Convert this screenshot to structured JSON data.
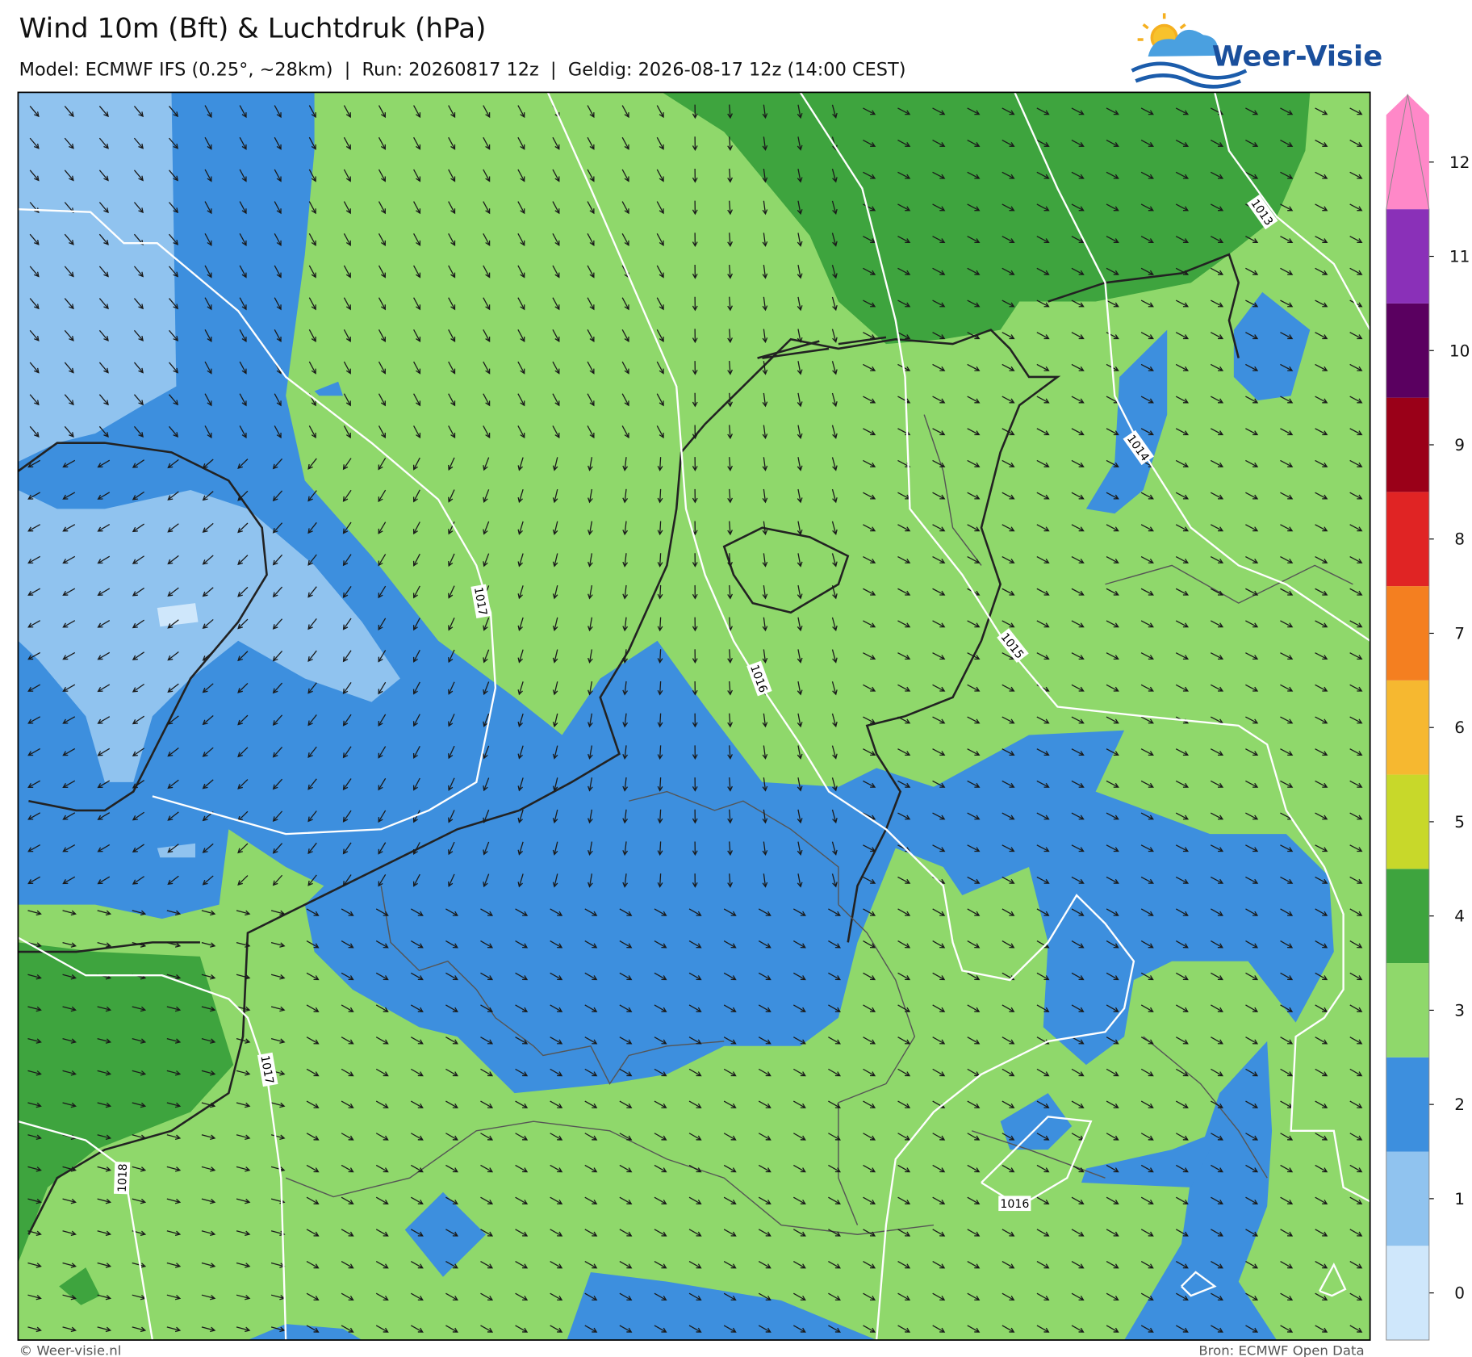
{
  "header": {
    "title": "Wind 10m (Bft) & Luchtdruk (hPa)",
    "subtitle": "Model: ECMWF IFS (0.25°, ~28km)  |  Run: 20260817 12z  |  Geldig: 2026-08-17 12z (14:00 CEST)"
  },
  "logo": {
    "text": "Weer-Visie"
  },
  "map": {
    "isobar_labels": [
      "1017",
      "1016",
      "1015",
      "1014",
      "1013",
      "1016",
      "1017",
      "1018"
    ]
  },
  "colorbar": {
    "levels": [
      {
        "label": 0,
        "color": "#cfe7fb"
      },
      {
        "label": 1,
        "color": "#90c3ef"
      },
      {
        "label": 2,
        "color": "#3d8fde"
      },
      {
        "label": 3,
        "color": "#8fd86b"
      },
      {
        "label": 4,
        "color": "#3ea43e"
      },
      {
        "label": 5,
        "color": "#c8d82a"
      },
      {
        "label": 6,
        "color": "#f6b830"
      },
      {
        "label": 7,
        "color": "#f47f20"
      },
      {
        "label": 8,
        "color": "#e02424"
      },
      {
        "label": 9,
        "color": "#9a0018"
      },
      {
        "label": 10,
        "color": "#5a0060"
      },
      {
        "label": 11,
        "color": "#8a30b8"
      },
      {
        "label": 12,
        "color": "#ff88c8"
      }
    ]
  },
  "footer": {
    "left": "© Weer-visie.nl",
    "right": "Bron: ECMWF Open Data"
  }
}
